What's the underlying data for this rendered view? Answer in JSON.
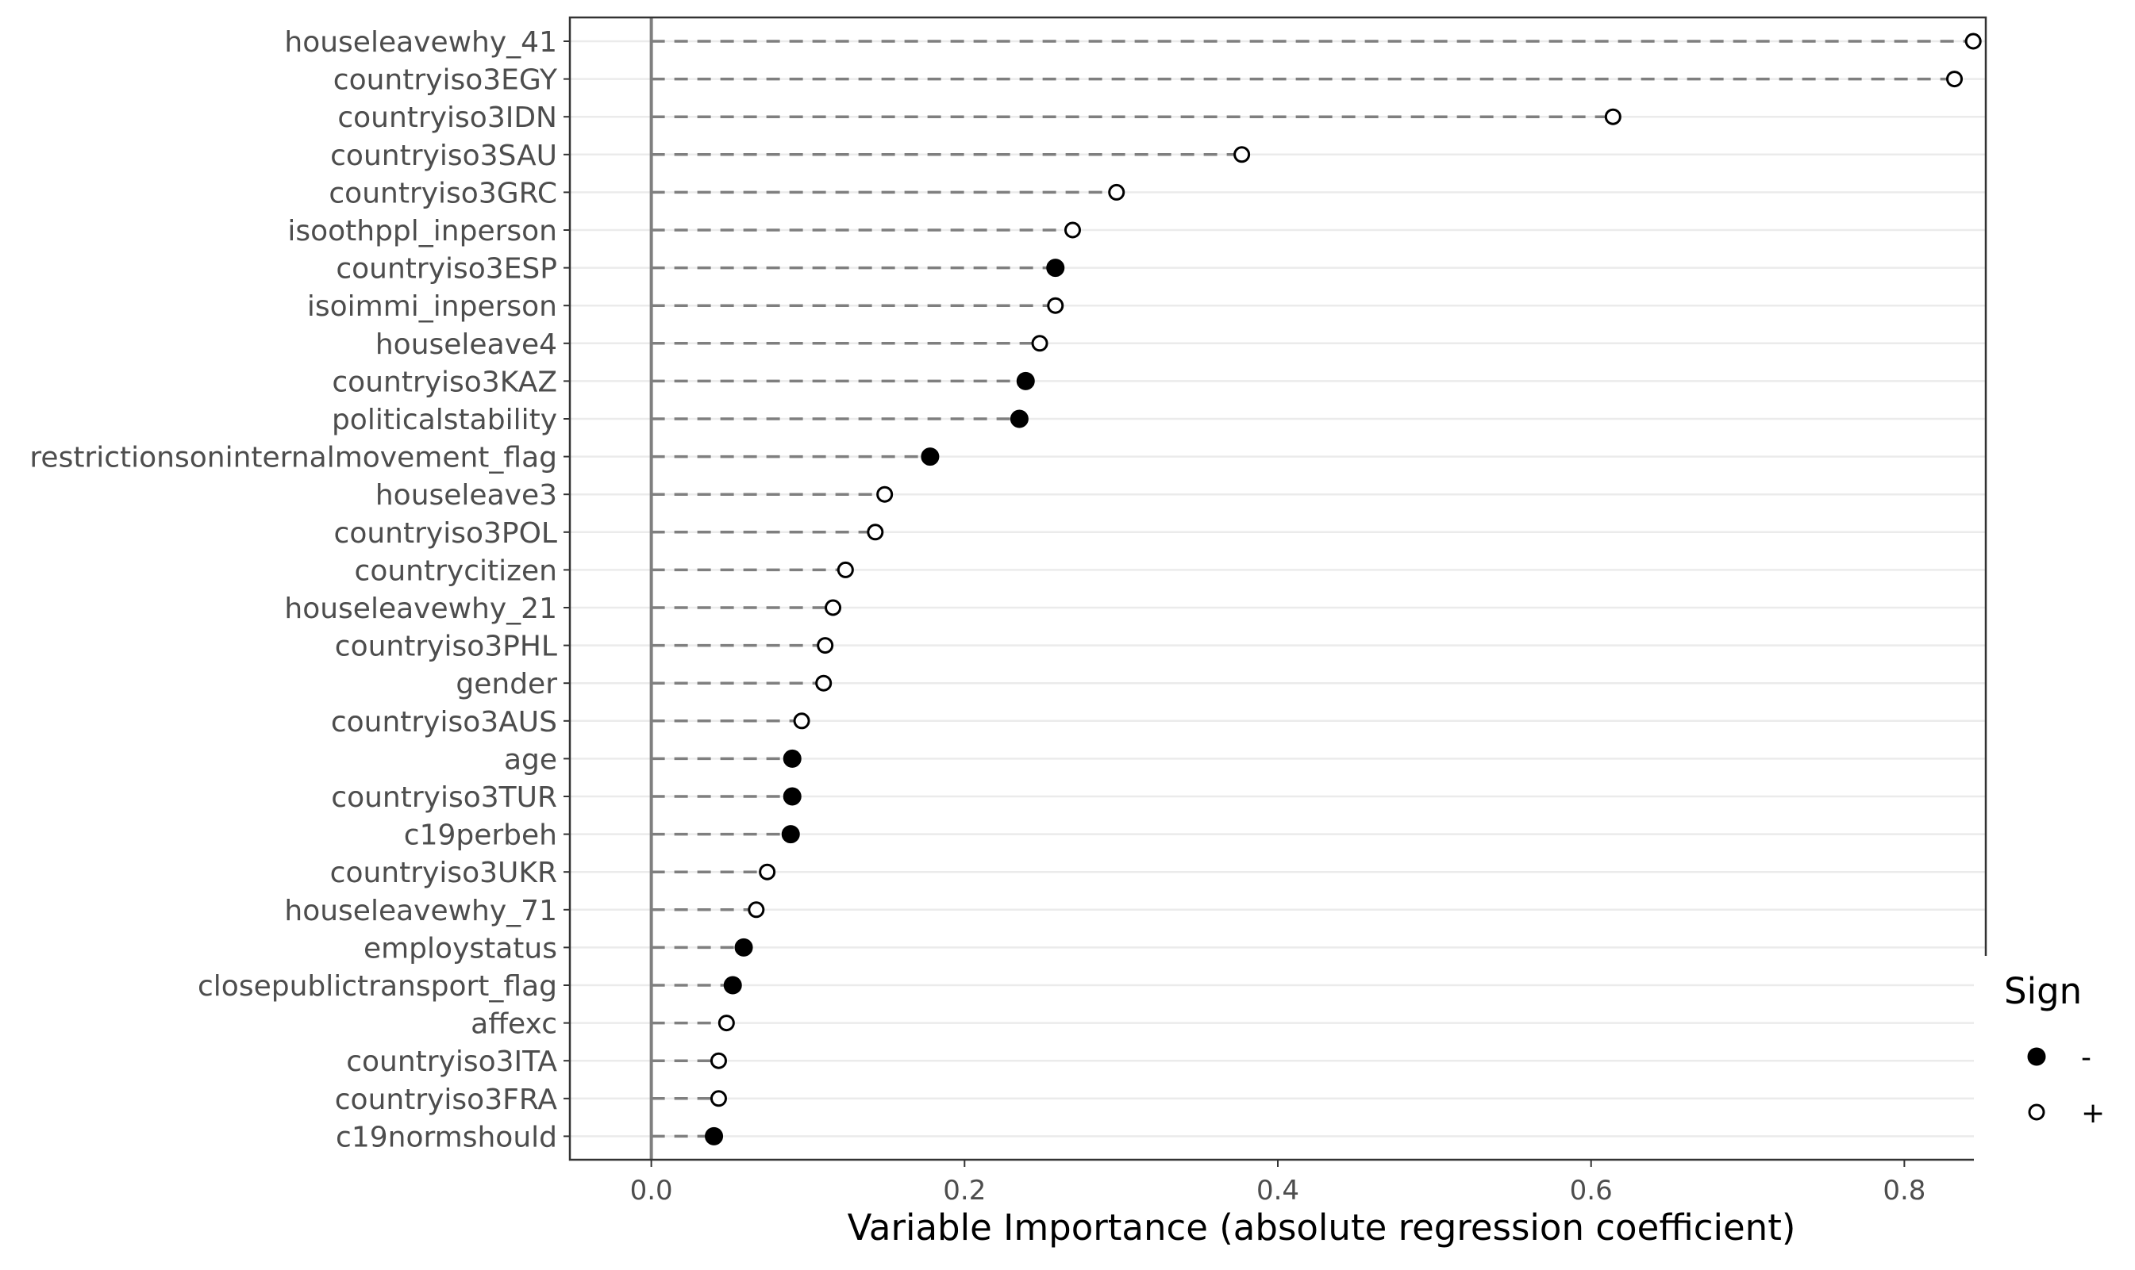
{
  "chart_data": {
    "type": "scatter",
    "subtype": "lollipop",
    "title": "",
    "xlabel": "Variable Importance (absolute regression coefficient)",
    "ylabel": "",
    "xlim": [
      -0.052,
      0.852
    ],
    "xticks": [
      "0.0",
      "0.2",
      "0.4",
      "0.6",
      "0.8"
    ],
    "xtick_values": [
      0.0,
      0.2,
      0.4,
      0.6,
      0.8
    ],
    "grid": true,
    "legend": {
      "title": "Sign",
      "placement": "right",
      "entries": [
        {
          "label": "-",
          "marker": "filled"
        },
        {
          "label": "+",
          "marker": "open"
        }
      ]
    },
    "points": [
      {
        "name": "houseleavewhy_41",
        "value": 0.844,
        "sign": "+"
      },
      {
        "name": "countryiso3EGY",
        "value": 0.832,
        "sign": "+"
      },
      {
        "name": "countryiso3IDN",
        "value": 0.614,
        "sign": "+"
      },
      {
        "name": "countryiso3SAU",
        "value": 0.377,
        "sign": "+"
      },
      {
        "name": "countryiso3GRC",
        "value": 0.297,
        "sign": "+"
      },
      {
        "name": "isoothppl_inperson",
        "value": 0.269,
        "sign": "+"
      },
      {
        "name": "countryiso3ESP",
        "value": 0.258,
        "sign": "-"
      },
      {
        "name": "isoimmi_inperson",
        "value": 0.258,
        "sign": "+"
      },
      {
        "name": "houseleave4",
        "value": 0.248,
        "sign": "+"
      },
      {
        "name": "countryiso3KAZ",
        "value": 0.239,
        "sign": "-"
      },
      {
        "name": "politicalstability",
        "value": 0.235,
        "sign": "-"
      },
      {
        "name": "restrictionsoninternalmovement_flag",
        "value": 0.178,
        "sign": "-"
      },
      {
        "name": "houseleave3",
        "value": 0.149,
        "sign": "+"
      },
      {
        "name": "countryiso3POL",
        "value": 0.143,
        "sign": "+"
      },
      {
        "name": "countrycitizen",
        "value": 0.124,
        "sign": "+"
      },
      {
        "name": "houseleavewhy_21",
        "value": 0.116,
        "sign": "+"
      },
      {
        "name": "countryiso3PHL",
        "value": 0.111,
        "sign": "+"
      },
      {
        "name": "gender",
        "value": 0.11,
        "sign": "+"
      },
      {
        "name": "countryiso3AUS",
        "value": 0.096,
        "sign": "+"
      },
      {
        "name": "age",
        "value": 0.09,
        "sign": "-"
      },
      {
        "name": "countryiso3TUR",
        "value": 0.09,
        "sign": "-"
      },
      {
        "name": "c19perbeh",
        "value": 0.089,
        "sign": "-"
      },
      {
        "name": "countryiso3UKR",
        "value": 0.074,
        "sign": "+"
      },
      {
        "name": "houseleavewhy_71",
        "value": 0.067,
        "sign": "+"
      },
      {
        "name": "employstatus",
        "value": 0.059,
        "sign": "-"
      },
      {
        "name": "closepublictransport_flag",
        "value": 0.052,
        "sign": "-"
      },
      {
        "name": "affexc",
        "value": 0.048,
        "sign": "+"
      },
      {
        "name": "countryiso3ITA",
        "value": 0.043,
        "sign": "+"
      },
      {
        "name": "countryiso3FRA",
        "value": 0.043,
        "sign": "+"
      },
      {
        "name": "c19normshould",
        "value": 0.04,
        "sign": "-"
      }
    ]
  }
}
